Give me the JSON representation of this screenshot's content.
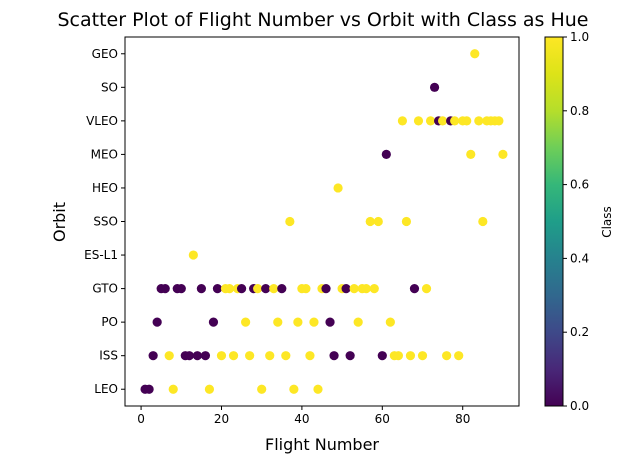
{
  "chart_data": {
    "type": "scatter",
    "title": "Scatter Plot of Flight Number vs Orbit with Class as Hue",
    "xlabel": "Flight Number",
    "ylabel": "Orbit",
    "xlim": [
      -4,
      94
    ],
    "xticks": [
      0,
      20,
      40,
      60,
      80
    ],
    "categories": [
      "LEO",
      "ISS",
      "PO",
      "GTO",
      "ES-L1",
      "SSO",
      "HEO",
      "MEO",
      "VLEO",
      "SO",
      "GEO"
    ],
    "colorbar": {
      "label": "Class",
      "range": [
        0,
        1
      ],
      "ticks": [
        "0.0",
        "0.2",
        "0.4",
        "0.6",
        "0.8",
        "1.0"
      ],
      "colormap": "viridis",
      "low_color": "#440154",
      "high_color": "#fde725"
    },
    "grid": false,
    "points": [
      {
        "x": 1,
        "orbit": "LEO",
        "class": 0
      },
      {
        "x": 2,
        "orbit": "LEO",
        "class": 0
      },
      {
        "x": 8,
        "orbit": "LEO",
        "class": 1
      },
      {
        "x": 17,
        "orbit": "LEO",
        "class": 1
      },
      {
        "x": 30,
        "orbit": "LEO",
        "class": 1
      },
      {
        "x": 38,
        "orbit": "LEO",
        "class": 1
      },
      {
        "x": 44,
        "orbit": "LEO",
        "class": 1
      },
      {
        "x": 3,
        "orbit": "ISS",
        "class": 0
      },
      {
        "x": 7,
        "orbit": "ISS",
        "class": 1
      },
      {
        "x": 11,
        "orbit": "ISS",
        "class": 0
      },
      {
        "x": 12,
        "orbit": "ISS",
        "class": 0
      },
      {
        "x": 14,
        "orbit": "ISS",
        "class": 0
      },
      {
        "x": 16,
        "orbit": "ISS",
        "class": 0
      },
      {
        "x": 20,
        "orbit": "ISS",
        "class": 1
      },
      {
        "x": 23,
        "orbit": "ISS",
        "class": 1
      },
      {
        "x": 27,
        "orbit": "ISS",
        "class": 1
      },
      {
        "x": 32,
        "orbit": "ISS",
        "class": 1
      },
      {
        "x": 36,
        "orbit": "ISS",
        "class": 1
      },
      {
        "x": 42,
        "orbit": "ISS",
        "class": 1
      },
      {
        "x": 48,
        "orbit": "ISS",
        "class": 0
      },
      {
        "x": 52,
        "orbit": "ISS",
        "class": 0
      },
      {
        "x": 60,
        "orbit": "ISS",
        "class": 0
      },
      {
        "x": 63,
        "orbit": "ISS",
        "class": 1
      },
      {
        "x": 64,
        "orbit": "ISS",
        "class": 1
      },
      {
        "x": 67,
        "orbit": "ISS",
        "class": 1
      },
      {
        "x": 70,
        "orbit": "ISS",
        "class": 1
      },
      {
        "x": 76,
        "orbit": "ISS",
        "class": 1
      },
      {
        "x": 79,
        "orbit": "ISS",
        "class": 1
      },
      {
        "x": 4,
        "orbit": "PO",
        "class": 0
      },
      {
        "x": 18,
        "orbit": "PO",
        "class": 0
      },
      {
        "x": 26,
        "orbit": "PO",
        "class": 1
      },
      {
        "x": 34,
        "orbit": "PO",
        "class": 1
      },
      {
        "x": 39,
        "orbit": "PO",
        "class": 1
      },
      {
        "x": 43,
        "orbit": "PO",
        "class": 1
      },
      {
        "x": 47,
        "orbit": "PO",
        "class": 0
      },
      {
        "x": 54,
        "orbit": "PO",
        "class": 1
      },
      {
        "x": 62,
        "orbit": "PO",
        "class": 1
      },
      {
        "x": 5,
        "orbit": "GTO",
        "class": 0
      },
      {
        "x": 6,
        "orbit": "GTO",
        "class": 0
      },
      {
        "x": 9,
        "orbit": "GTO",
        "class": 0
      },
      {
        "x": 10,
        "orbit": "GTO",
        "class": 0
      },
      {
        "x": 15,
        "orbit": "GTO",
        "class": 0
      },
      {
        "x": 19,
        "orbit": "GTO",
        "class": 0
      },
      {
        "x": 21,
        "orbit": "GTO",
        "class": 1
      },
      {
        "x": 22,
        "orbit": "GTO",
        "class": 1
      },
      {
        "x": 24,
        "orbit": "GTO",
        "class": 1
      },
      {
        "x": 25,
        "orbit": "GTO",
        "class": 0
      },
      {
        "x": 28,
        "orbit": "GTO",
        "class": 0
      },
      {
        "x": 29,
        "orbit": "GTO",
        "class": 1
      },
      {
        "x": 31,
        "orbit": "GTO",
        "class": 0
      },
      {
        "x": 33,
        "orbit": "GTO",
        "class": 1
      },
      {
        "x": 35,
        "orbit": "GTO",
        "class": 0
      },
      {
        "x": 40,
        "orbit": "GTO",
        "class": 1
      },
      {
        "x": 41,
        "orbit": "GTO",
        "class": 1
      },
      {
        "x": 45,
        "orbit": "GTO",
        "class": 1
      },
      {
        "x": 46,
        "orbit": "GTO",
        "class": 0
      },
      {
        "x": 50,
        "orbit": "GTO",
        "class": 1
      },
      {
        "x": 51,
        "orbit": "GTO",
        "class": 0
      },
      {
        "x": 53,
        "orbit": "GTO",
        "class": 1
      },
      {
        "x": 55,
        "orbit": "GTO",
        "class": 1
      },
      {
        "x": 56,
        "orbit": "GTO",
        "class": 1
      },
      {
        "x": 58,
        "orbit": "GTO",
        "class": 1
      },
      {
        "x": 68,
        "orbit": "GTO",
        "class": 0
      },
      {
        "x": 71,
        "orbit": "GTO",
        "class": 1
      },
      {
        "x": 13,
        "orbit": "ES-L1",
        "class": 1
      },
      {
        "x": 37,
        "orbit": "SSO",
        "class": 1
      },
      {
        "x": 57,
        "orbit": "SSO",
        "class": 1
      },
      {
        "x": 59,
        "orbit": "SSO",
        "class": 1
      },
      {
        "x": 66,
        "orbit": "SSO",
        "class": 1
      },
      {
        "x": 85,
        "orbit": "SSO",
        "class": 1
      },
      {
        "x": 49,
        "orbit": "HEO",
        "class": 1
      },
      {
        "x": 61,
        "orbit": "MEO",
        "class": 0
      },
      {
        "x": 82,
        "orbit": "MEO",
        "class": 1
      },
      {
        "x": 90,
        "orbit": "MEO",
        "class": 1
      },
      {
        "x": 65,
        "orbit": "VLEO",
        "class": 1
      },
      {
        "x": 69,
        "orbit": "VLEO",
        "class": 1
      },
      {
        "x": 72,
        "orbit": "VLEO",
        "class": 1
      },
      {
        "x": 74,
        "orbit": "VLEO",
        "class": 0
      },
      {
        "x": 75,
        "orbit": "VLEO",
        "class": 1
      },
      {
        "x": 77,
        "orbit": "VLEO",
        "class": 0
      },
      {
        "x": 78,
        "orbit": "VLEO",
        "class": 1
      },
      {
        "x": 80,
        "orbit": "VLEO",
        "class": 1
      },
      {
        "x": 81,
        "orbit": "VLEO",
        "class": 1
      },
      {
        "x": 84,
        "orbit": "VLEO",
        "class": 1
      },
      {
        "x": 86,
        "orbit": "VLEO",
        "class": 1
      },
      {
        "x": 87,
        "orbit": "VLEO",
        "class": 1
      },
      {
        "x": 88,
        "orbit": "VLEO",
        "class": 1
      },
      {
        "x": 89,
        "orbit": "VLEO",
        "class": 1
      },
      {
        "x": 73,
        "orbit": "SO",
        "class": 0
      },
      {
        "x": 83,
        "orbit": "GEO",
        "class": 1
      }
    ]
  }
}
